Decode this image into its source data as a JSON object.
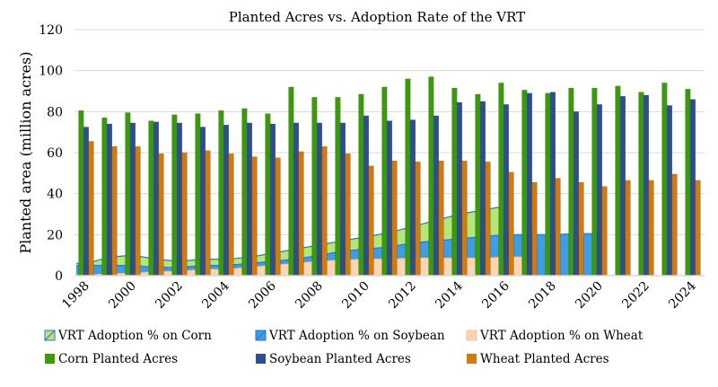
{
  "chart_data": {
    "type": "bar",
    "title": "Planted Acres vs. Adoption Rate of the VRT",
    "ylabel": "Planted area (million acres)",
    "xlabel": "",
    "ylim": [
      0,
      120
    ],
    "yticks": [
      0,
      20,
      40,
      60,
      80,
      100,
      120
    ],
    "grid": true,
    "legend": "bottom",
    "categories": [
      1998,
      1999,
      2000,
      2001,
      2002,
      2003,
      2004,
      2005,
      2006,
      2007,
      2008,
      2009,
      2010,
      2011,
      2012,
      2013,
      2014,
      2015,
      2016,
      2017,
      2018,
      2019,
      2020,
      2021,
      2022,
      2023,
      2024
    ],
    "xtick_labels": [
      "1998",
      "2000",
      "2002",
      "2004",
      "2006",
      "2008",
      "2010",
      "2012",
      "2014",
      "2016",
      "2018",
      "2020",
      "2022",
      "2024"
    ],
    "area_series": [
      {
        "name": "VRT Adoption % on Corn",
        "color": "#b4e67a",
        "values": [
          6,
          9,
          10,
          8,
          7,
          8,
          8,
          9,
          11,
          13,
          15,
          17,
          19,
          21,
          24,
          27,
          30,
          32,
          34,
          null,
          null,
          null,
          null,
          null,
          null,
          null,
          null
        ]
      },
      {
        "name": "VRT Adoption % on Soybean",
        "color": "#3d9ee6",
        "values": [
          5,
          5,
          5,
          4,
          4,
          5,
          5,
          6,
          7,
          8,
          10,
          12,
          13,
          14,
          16,
          17,
          18,
          19,
          20,
          20,
          20,
          20.5,
          20.5,
          null,
          null,
          null,
          null
        ]
      },
      {
        "name": "VRT Adoption % on Wheat",
        "color": "#fdd5b4",
        "values": [
          0,
          1,
          1,
          2,
          2,
          3,
          3,
          4,
          5,
          6,
          7,
          7.5,
          8,
          8,
          8.5,
          8.5,
          8.5,
          8.5,
          9,
          9,
          null,
          null,
          null,
          null,
          null,
          null,
          null
        ]
      }
    ],
    "series": [
      {
        "name": "Corn Planted Acres",
        "color": "#3a9a0a",
        "values": [
          80.5,
          77,
          79.5,
          75.5,
          78.5,
          79,
          80.5,
          81.5,
          79,
          92,
          87,
          87,
          88.5,
          92,
          96,
          97,
          91.5,
          88.5,
          94,
          90.5,
          89,
          91.5,
          91.5,
          92.5,
          89.5,
          94,
          91
        ]
      },
      {
        "name": "Soybean Planted Acres",
        "color": "#2b4f91",
        "values": [
          72.5,
          74,
          74.5,
          75,
          74.5,
          72.5,
          73.5,
          74.5,
          74,
          74.5,
          74.5,
          74.5,
          78,
          75.5,
          76,
          78,
          84.5,
          85,
          83.5,
          89,
          89.5,
          80,
          83.5,
          87.5,
          88,
          83,
          86
        ]
      },
      {
        "name": "Wheat Planted Acres",
        "color": "#d47a0a",
        "values": [
          65.5,
          63,
          63,
          59.5,
          60,
          61,
          59.5,
          58,
          57.5,
          60.5,
          63,
          59.5,
          53.5,
          56,
          55.5,
          56,
          56,
          55.5,
          50.5,
          45.5,
          47.5,
          45.5,
          43.5,
          46.5,
          46.5,
          49.5,
          46.5
        ]
      }
    ]
  }
}
